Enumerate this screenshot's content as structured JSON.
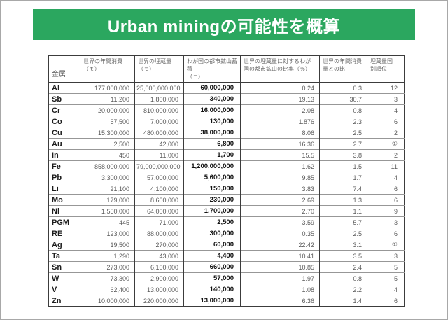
{
  "title": {
    "text": "Urban miningの可能性を概算"
  },
  "theme": {
    "banner_green": "#2BA75F",
    "banner_text_color": "#FFFFFF",
    "grid_dark": "#3C3C3C",
    "grid_light": "#979797"
  },
  "table": {
    "columns": [
      {
        "key": "metal",
        "label": "金属"
      },
      {
        "key": "world_annual_consumption_t",
        "label": "世界の年間消費\n（ｔ）"
      },
      {
        "key": "world_reserves_t",
        "label": "世界の埋蔵量\n（ｔ）"
      },
      {
        "key": "japan_urban_mine_stock_t",
        "label": "わが国の都市鉱山蓄積\n（ｔ）"
      },
      {
        "key": "pct_of_world_reserves",
        "label": "世界の埋蔵量に対するわが\n国の都市鉱山の比率（％）"
      },
      {
        "key": "ratio_to_world_annual_consumption",
        "label": "世界の年間消費\n量との比"
      },
      {
        "key": "reserve_country_rank",
        "label": "埋蔵量国\n別順位"
      }
    ],
    "rows": [
      [
        "Al",
        "177,000,000",
        "25,000,000,000",
        "60,000,000",
        "0.24",
        "0.3",
        "12"
      ],
      [
        "Sb",
        "11,200",
        "1,800,000",
        "340,000",
        "19.13",
        "30.7",
        "3"
      ],
      [
        "Cr",
        "20,000,000",
        "810,000,000",
        "16,000,000",
        "2.08",
        "0.8",
        "4"
      ],
      [
        "Co",
        "57,500",
        "7,000,000",
        "130,000",
        "1.876",
        "2.3",
        "6"
      ],
      [
        "Cu",
        "15,300,000",
        "480,000,000",
        "38,000,000",
        "8.06",
        "2.5",
        "2"
      ],
      [
        "Au",
        "2,500",
        "42,000",
        "6,800",
        "16.36",
        "2.7",
        "①"
      ],
      [
        "In",
        "450",
        "11,000",
        "1,700",
        "15.5",
        "3.8",
        "2"
      ],
      [
        "Fe",
        "858,000,000",
        "79,000,000,000",
        "1,200,000,000",
        "1.62",
        "1.5",
        "11"
      ],
      [
        "Pb",
        "3,300,000",
        "57,000,000",
        "5,600,000",
        "9.85",
        "1.7",
        "4"
      ],
      [
        "Li",
        "21,100",
        "4,100,000",
        "150,000",
        "3.83",
        "7.4",
        "6"
      ],
      [
        "Mo",
        "179,000",
        "8,600,000",
        "230,000",
        "2.69",
        "1.3",
        "6"
      ],
      [
        "Ni",
        "1,550,000",
        "64,000,000",
        "1,700,000",
        "2.70",
        "1.1",
        "9"
      ],
      [
        "PGM",
        "445",
        "71,000",
        "2,500",
        "3.59",
        "5.7",
        "3"
      ],
      [
        "RE",
        "123,000",
        "88,000,000",
        "300,000",
        "0.35",
        "2.5",
        "6"
      ],
      [
        "Ag",
        "19,500",
        "270,000",
        "60,000",
        "22.42",
        "3.1",
        "①"
      ],
      [
        "Ta",
        "1,290",
        "43,000",
        "4,400",
        "10.41",
        "3.5",
        "3"
      ],
      [
        "Sn",
        "273,000",
        "6,100,000",
        "660,000",
        "10.85",
        "2.4",
        "5"
      ],
      [
        "W",
        "73,300",
        "2,900,000",
        "57,000",
        "1.97",
        "0.8",
        "5"
      ],
      [
        "V",
        "62,400",
        "13,000,000",
        "140,000",
        "1.08",
        "2.2",
        "4"
      ],
      [
        "Zn",
        "10,000,000",
        "220,000,000",
        "13,000,000",
        "6.36",
        "1.4",
        "6"
      ]
    ]
  }
}
